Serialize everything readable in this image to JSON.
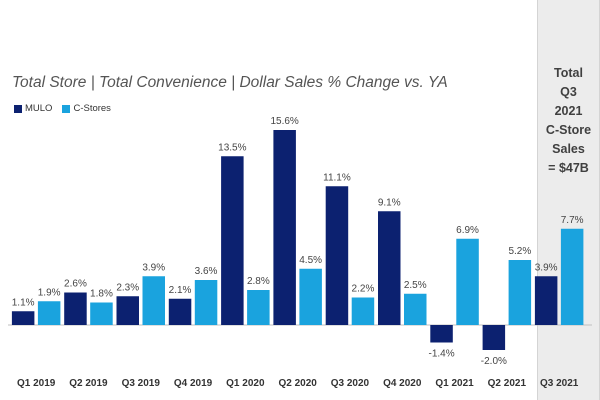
{
  "chart_data": {
    "type": "bar",
    "title": "Total Store | Total Convenience | Dollar Sales % Change vs. YA",
    "categories": [
      "Q1 2019",
      "Q2 2019",
      "Q3 2019",
      "Q4 2019",
      "Q1 2020",
      "Q2 2020",
      "Q3 2020",
      "Q4 2020",
      "Q1 2021",
      "Q2 2021",
      "Q3 2021"
    ],
    "series": [
      {
        "name": "MULO",
        "color": "#0c2170",
        "values": [
          1.1,
          2.6,
          2.3,
          2.1,
          13.5,
          15.6,
          11.1,
          9.1,
          -1.4,
          -2.0,
          3.9
        ],
        "labels": [
          "1.1%",
          "2.6%",
          "2.3%",
          "2.1%",
          "13.5%",
          "15.6%",
          "11.1%",
          "9.1%",
          "-1.4%",
          "-2.0%",
          "3.9%"
        ]
      },
      {
        "name": "C-Stores",
        "color": "#1aa3de",
        "values": [
          1.9,
          1.8,
          3.9,
          3.6,
          2.8,
          4.5,
          2.2,
          2.5,
          6.9,
          5.2,
          7.7
        ],
        "labels": [
          "1.9%",
          "1.8%",
          "3.9%",
          "3.6%",
          "2.8%",
          "4.5%",
          "2.2%",
          "2.5%",
          "6.9%",
          "5.2%",
          "7.7%"
        ]
      }
    ],
    "xlabel": "",
    "ylabel": "",
    "ylim": [
      -3,
      17
    ],
    "grid": false,
    "legend": "top-left"
  },
  "callout": {
    "lines": [
      "Total",
      "Q3",
      "2021",
      "C-Store",
      "Sales",
      "= $47B"
    ]
  }
}
